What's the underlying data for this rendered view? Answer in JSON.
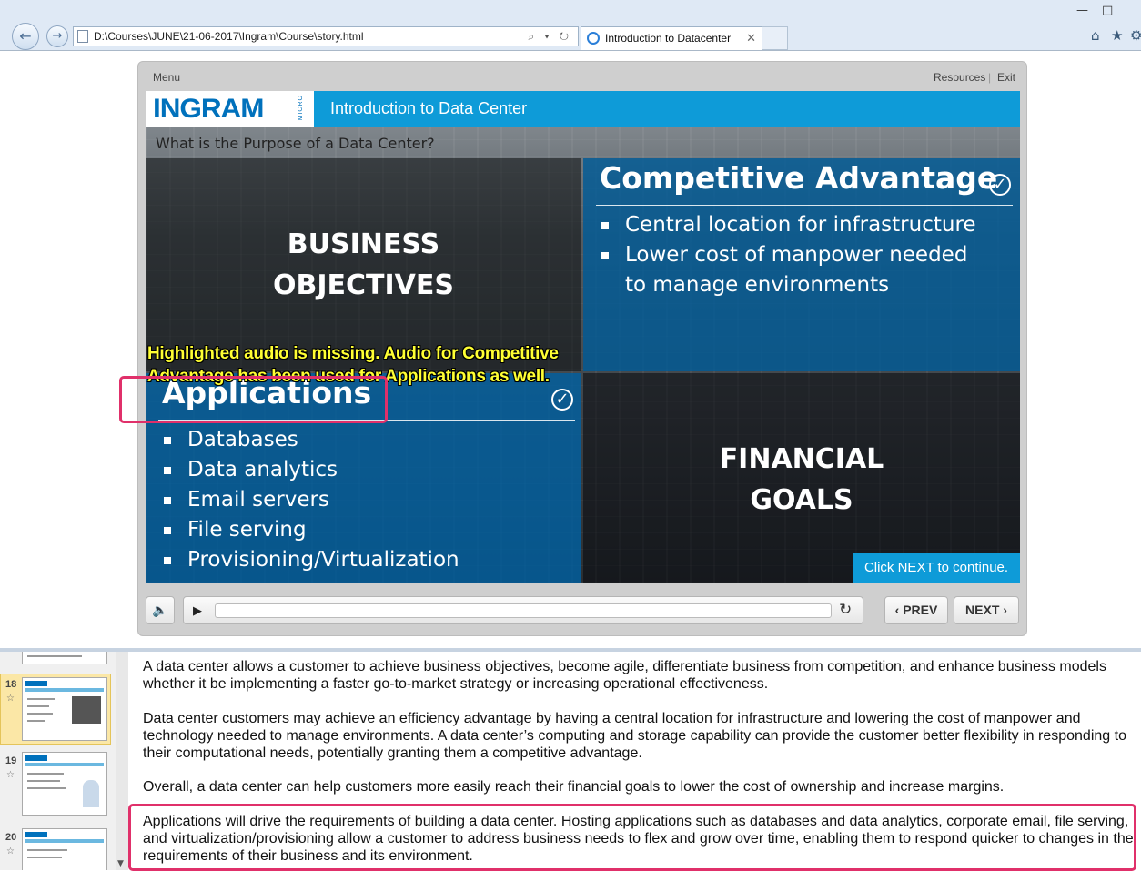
{
  "browser": {
    "address": "D:\\Courses\\JUNE\\21-06-2017\\Ingram\\Course\\story.html",
    "address_tools": "⌕ ▾ ↻",
    "tab_title": "Introduction to Datacenter",
    "tab_close": "✕",
    "back_glyph": "←",
    "forward_glyph": "→",
    "minimize": "—",
    "maximize": "□",
    "home_icon": "⌂",
    "star_icon": "★",
    "gear_icon": "⚙"
  },
  "player": {
    "menu_label": "Menu",
    "resources_label": "Resources",
    "separator": "|",
    "exit_label": "Exit",
    "prev_label": "‹ PREV",
    "next_label": "NEXT ›",
    "volume_icon": "🔈",
    "play_icon": "▶",
    "replay_icon": "↻"
  },
  "slide": {
    "logo": "INGRAM",
    "logo_sub": "MICRO",
    "course_title": "Introduction to Data Center",
    "question": "What is the Purpose of a Data Center?",
    "business": {
      "line1": "BUSINESS",
      "line2": "OBJECTIVES"
    },
    "competitive": {
      "title": "Competitive Advantage",
      "check": "✓",
      "bullets": [
        "Central location for infrastructure",
        "Lower cost of manpower needed",
        "to manage environments"
      ]
    },
    "applications": {
      "title": "Applications",
      "check": "✓",
      "bullets": [
        "Databases",
        "Data analytics",
        "Email servers",
        "File serving",
        "Provisioning/Virtualization"
      ]
    },
    "financial": {
      "line1": "FINANCIAL",
      "line2": "GOALS"
    },
    "annotation": {
      "line1": "Highlighted audio is missing. Audio for Competitive",
      "line2": "Advantage has been used for Applications as well."
    },
    "next_hint": "Click NEXT to continue."
  },
  "editor": {
    "slides": [
      {
        "number": "18",
        "star": "☆"
      },
      {
        "number": "19",
        "star": "☆"
      },
      {
        "number": "20",
        "star": "☆"
      }
    ],
    "scroll_arrow": "▼",
    "notes": [
      "A data center allows a customer to achieve business objectives, become agile, differentiate business from competition, and enhance business models whether it be implementing a faster go-to-market strategy or increasing operational effectiveness.",
      "Data center customers may achieve an efficiency advantage by having a central location for infrastructure and lowering the cost of manpower and technology needed to manage environments. A data center’s computing and storage capability can provide the customer better flexibility in responding to their computational needs, potentially granting them a competitive advantage.",
      "Overall, a data center can help customers more easily reach their financial goals to lower the cost of ownership and increase margins.",
      "Applications will drive the requirements of building a data center. Hosting applications such as databases and data analytics, corporate email, file serving, and virtualization/provisioning allow a customer to address business needs to flex and grow over time, enabling them to respond quicker to changes in the requirements of their business and its environment."
    ]
  },
  "colors": {
    "highlight": "#e0306a",
    "brand_blue": "#0e9bd8",
    "annotation_yellow": "#ffff33"
  }
}
